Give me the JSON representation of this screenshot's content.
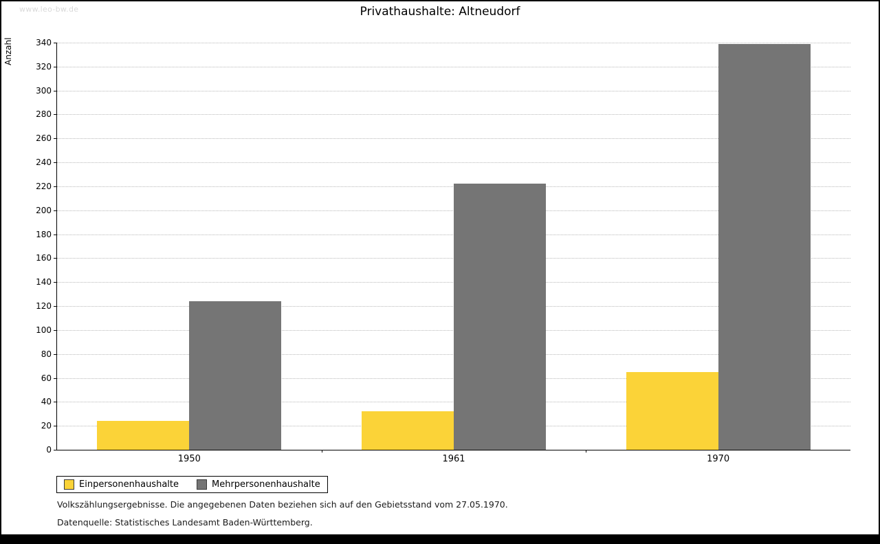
{
  "watermark": "www.leo-bw.de",
  "chart_data": {
    "type": "bar",
    "title": "Privathaushalte: Altneudorf",
    "xlabel": "",
    "ylabel": "Anzahl",
    "categories": [
      "1950",
      "1961",
      "1970"
    ],
    "series": [
      {
        "name": "Einpersonenhaushalte",
        "color": "#FBD338",
        "values": [
          24,
          32,
          65
        ]
      },
      {
        "name": "Mehrpersonenhaushalte",
        "color": "#757575",
        "values": [
          124,
          222,
          339
        ]
      }
    ],
    "ylim": [
      0,
      340
    ],
    "ytick_step": 20,
    "grid": "horizontal-dotted",
    "legend_position": "bottom-left"
  },
  "footnotes": [
    "Volkszählungsergebnisse. Die angegebenen Daten beziehen sich auf den Gebietsstand vom 27.05.1970.",
    "Datenquelle: Statistisches Landesamt Baden-Württemberg."
  ]
}
